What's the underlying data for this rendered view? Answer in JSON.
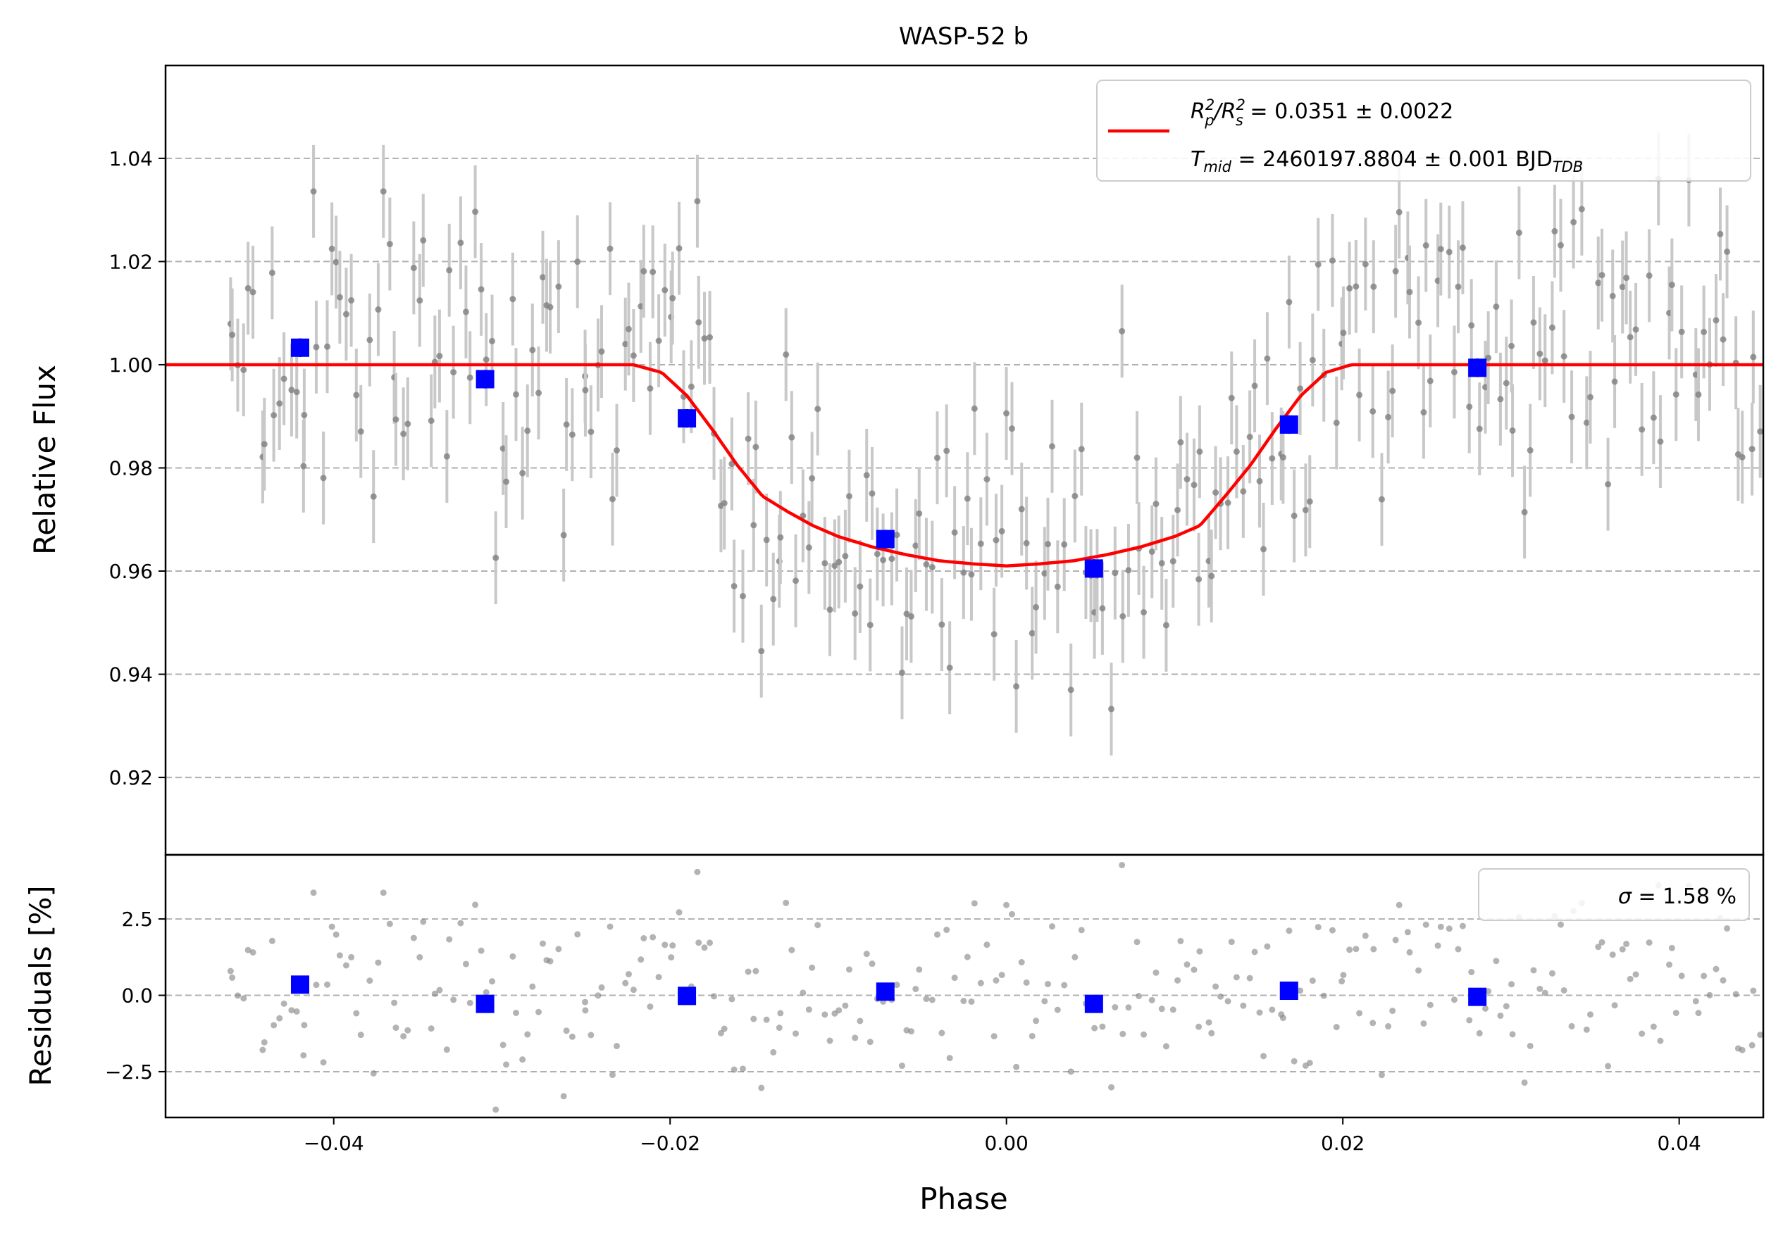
{
  "chart_data": [
    {
      "type": "scatter",
      "panel": "main",
      "title": "WASP-52 b",
      "xlabel": "",
      "ylabel": "Relative Flux",
      "xlim": [
        -0.05,
        0.045
      ],
      "ylim": [
        0.905,
        1.058
      ],
      "grid": "horizontal dashed",
      "yticks": [
        0.92,
        0.94,
        0.96,
        0.98,
        1.0,
        1.02,
        1.04
      ],
      "ytick_labels": [
        "0.92",
        "0.94",
        "0.96",
        "0.98",
        "1.00",
        "1.02",
        "1.04"
      ],
      "legend": {
        "placement": "top-right",
        "line1_prefix": "R",
        "line1_sub1": "p",
        "line1_sup1": "2",
        "line1_mid": "/R",
        "line1_sub2": "s",
        "line1_sup2": "2",
        "line1_suffix": " = 0.0351 ± 0.0022",
        "line2_prefix": "T",
        "line2_sub1": "mid",
        "line2_mid": " = 2460197.8804 ± 0.001 BJD",
        "line2_sub2": "TDB"
      },
      "model": {
        "name": "transit model",
        "color": "#ff0000",
        "x": [
          -0.05,
          -0.0222,
          -0.0205,
          -0.019,
          -0.0175,
          -0.016,
          -0.0145,
          -0.013,
          -0.0115,
          -0.01,
          -0.008,
          -0.006,
          -0.004,
          -0.002,
          0.0,
          0.002,
          0.004,
          0.006,
          0.008,
          0.01,
          0.0115,
          0.013,
          0.0145,
          0.016,
          0.0175,
          0.019,
          0.0205,
          0.0222,
          0.045
        ],
        "y": [
          1.0,
          1.0,
          0.9985,
          0.994,
          0.9875,
          0.9805,
          0.9745,
          0.9715,
          0.9688,
          0.9667,
          0.9647,
          0.9632,
          0.962,
          0.9614,
          0.961,
          0.9614,
          0.962,
          0.9632,
          0.9647,
          0.9667,
          0.9688,
          0.9745,
          0.9805,
          0.9875,
          0.994,
          0.9985,
          1.0,
          1.0,
          1.0
        ]
      },
      "binned": {
        "color": "#0000ff",
        "x": [
          -0.042,
          -0.031,
          -0.019,
          -0.0072,
          0.0052,
          0.0168,
          0.028
        ],
        "y": [
          1.0033,
          0.9972,
          0.9896,
          0.9662,
          0.9605,
          0.9884,
          0.9994
        ],
        "err": [
          0.0018,
          0.0018,
          0.0018,
          0.0018,
          0.0018,
          0.0018,
          0.0018
        ]
      },
      "raw_points": {
        "color": "#808080",
        "errorbar_color": "#c8c8c8",
        "note": "unbinned observations with ±0.009 error bars",
        "count": 300
      }
    },
    {
      "type": "scatter",
      "panel": "residuals",
      "xlabel": "Phase",
      "ylabel": "Residuals [%]",
      "xlim": [
        -0.05,
        0.045
      ],
      "ylim": [
        -4.0,
        4.6
      ],
      "grid": "horizontal dashed",
      "xticks": [
        -0.04,
        -0.02,
        0.0,
        0.02,
        0.04
      ],
      "xtick_labels": [
        "−0.04",
        "−0.02",
        "0.00",
        "0.02",
        "0.04"
      ],
      "yticks": [
        -2.5,
        0.0,
        2.5
      ],
      "ytick_labels": [
        "−2.5",
        "0.0",
        "2.5"
      ],
      "legend": {
        "placement": "top-right",
        "sigma_symbol": "σ",
        "sigma_text": " = 1.58 %"
      },
      "binned": {
        "color": "#0000ff",
        "x": [
          -0.042,
          -0.031,
          -0.019,
          -0.0072,
          0.0052,
          0.0168,
          0.028
        ],
        "y": [
          0.35,
          -0.28,
          -0.02,
          0.12,
          -0.28,
          0.15,
          -0.05
        ]
      },
      "raw_points": {
        "color": "#808080",
        "count": 300
      }
    }
  ]
}
